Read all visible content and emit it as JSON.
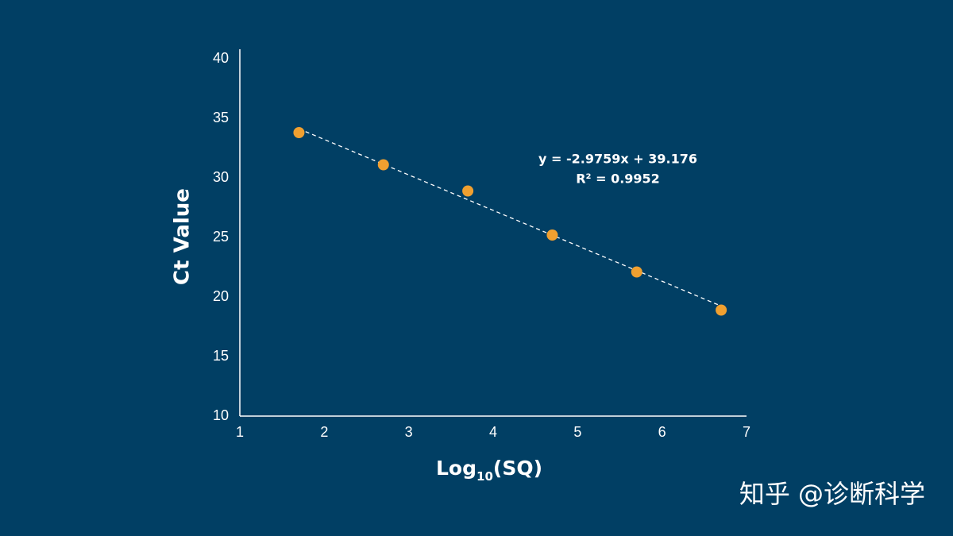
{
  "chart_data": {
    "type": "scatter",
    "x_label_parts": [
      "Log",
      "10",
      "(SQ)"
    ],
    "y_label": "Ct Value",
    "x": [
      1.7,
      2.7,
      3.7,
      4.7,
      5.7,
      6.7
    ],
    "series": [
      {
        "name": "Ct",
        "color": "#f0a030",
        "values": [
          33.8,
          31.1,
          28.9,
          25.2,
          22.1,
          18.9
        ]
      }
    ],
    "trendline": {
      "slope": -2.9759,
      "intercept": 39.176,
      "color": "#ffffff",
      "dashed": true
    },
    "annotations": [
      "y = -2.9759x + 39.176",
      "R² = 0.9952"
    ],
    "xlim": [
      1,
      7
    ],
    "xticks": [
      1,
      2,
      3,
      4,
      5,
      6,
      7
    ],
    "ylim": [
      10,
      40
    ],
    "yticks": [
      10,
      15,
      20,
      25,
      30,
      35,
      40
    ],
    "grid": false
  },
  "watermark": "知乎 @诊断科学"
}
